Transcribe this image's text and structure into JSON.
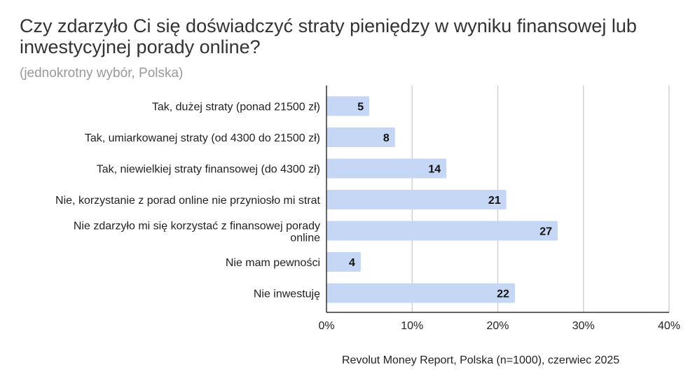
{
  "chart_data": {
    "type": "bar",
    "orientation": "horizontal",
    "title": "Czy zdarzyło Ci się doświadczyć straty pieniędzy w wyniku finansowej lub inwestycyjnej porady online?",
    "subtitle": "(jednokrotny wybór, Polska)",
    "categories": [
      "Tak, dużej straty (ponad 21500 zł)",
      "Tak, umiarkowanej straty (od 4300 do 21500 zł)",
      "Tak, niewielkiej straty finansowej (do 4300 zł)",
      "Nie, korzystanie z porad online nie przyniosło mi strat",
      "Nie zdarzyło mi się korzystać z finansowej porady online",
      "Nie mam pewności",
      "Nie inwestuję"
    ],
    "values": [
      5,
      8,
      14,
      21,
      27,
      4,
      22
    ],
    "xlim": [
      0,
      40
    ],
    "ticks": [
      0,
      10,
      20,
      30,
      40
    ],
    "tick_labels": [
      "0%",
      "10%",
      "20%",
      "30%",
      "40%"
    ],
    "grid": true,
    "bar_color": "#c5d7f5",
    "source": "Revolut Money Report, Polska (n=1000), czerwiec 2025"
  }
}
